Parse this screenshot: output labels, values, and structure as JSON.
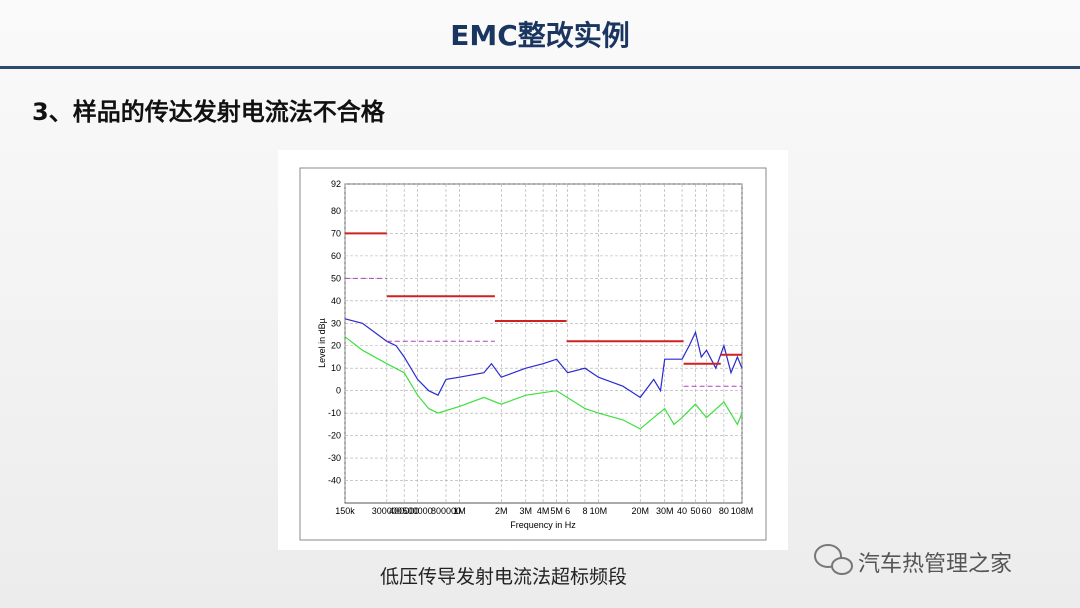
{
  "header": {
    "title": "EMC整改实例"
  },
  "subtitle": "3、样品的传达发射电流法不合格",
  "caption": "低压传导发射电流法超标频段",
  "watermark": "汽车热管理之家",
  "chart_data": {
    "type": "line",
    "log_x": true,
    "grid": true,
    "x_label": "Frequency in Hz",
    "y_label": "Level in dBµ",
    "xlim": [
      150000,
      108000000
    ],
    "ylim": [
      -50,
      92
    ],
    "xticks": [
      {
        "value": 150000,
        "label": "150k"
      },
      300000,
      400000,
      500000,
      800000,
      {
        "value": 1000000,
        "label": "1M"
      },
      {
        "value": 2000000,
        "label": "2M"
      },
      {
        "value": 3000000,
        "label": "3M"
      },
      {
        "value": 4000000,
        "label": "4M"
      },
      {
        "value": 5000000,
        "label": "5M"
      },
      {
        "value": 6000000,
        "label": "6"
      },
      {
        "value": 8000000,
        "label": "8"
      },
      {
        "value": 10000000,
        "label": "10M"
      },
      {
        "value": 20000000,
        "label": "20M"
      },
      {
        "value": 30000000,
        "label": "30M"
      },
      {
        "value": 40000000,
        "label": "40"
      },
      {
        "value": 50000000,
        "label": "50"
      },
      {
        "value": 60000000,
        "label": "60"
      },
      {
        "value": 80000000,
        "label": "80"
      },
      {
        "value": 108000000,
        "label": "108M"
      }
    ],
    "yticks": [
      92,
      80,
      70,
      60,
      50,
      40,
      30,
      20,
      10,
      0,
      -10,
      -20,
      -30,
      -40
    ],
    "series": [
      {
        "color": "#2a2ad0",
        "width": 1.2,
        "x": [
          150000,
          200000,
          300000,
          350000,
          400000,
          500000,
          600000,
          700000,
          800000,
          1000000,
          1500000,
          1700000,
          2000000,
          3000000,
          4000000,
          5000000,
          6000000,
          8000000,
          10000000,
          15000000,
          20000000,
          25000000,
          28000000,
          30000000,
          40000000,
          45000000,
          50000000,
          55000000,
          60000000,
          70000000,
          80000000,
          90000000,
          100000000,
          108000000
        ],
        "values": [
          32,
          30,
          22,
          20,
          15,
          5,
          0,
          -2,
          5,
          6,
          8,
          12,
          6,
          10,
          12,
          14,
          8,
          10,
          6,
          2,
          -3,
          5,
          0,
          14,
          14,
          20,
          26,
          15,
          18,
          10,
          20,
          8,
          15,
          10
        ]
      },
      {
        "color": "#3ce03c",
        "width": 1.2,
        "x": [
          150000,
          200000,
          300000,
          400000,
          500000,
          600000,
          700000,
          1000000,
          1500000,
          2000000,
          3000000,
          5000000,
          8000000,
          10000000,
          15000000,
          20000000,
          25000000,
          30000000,
          35000000,
          40000000,
          50000000,
          60000000,
          80000000,
          100000000,
          108000000
        ],
        "values": [
          24,
          18,
          12,
          8,
          -2,
          -8,
          -10,
          -7,
          -3,
          -6,
          -2,
          0,
          -8,
          -10,
          -13,
          -17,
          -12,
          -8,
          -15,
          -12,
          -6,
          -12,
          -5,
          -15,
          -10
        ]
      },
      {
        "color": "#d02020",
        "width": 2,
        "x": [
          150000,
          300000,
          300000,
          300000,
          1800000,
          1800000,
          1800000,
          5900000,
          5900000,
          5900000,
          41000000,
          41000000,
          41000000,
          76000000,
          76000000,
          76000000,
          108000000
        ],
        "values": [
          70,
          70,
          null,
          42,
          42,
          null,
          31,
          31,
          null,
          22,
          22,
          null,
          12,
          12,
          null,
          16,
          16
        ]
      },
      {
        "color": "#b040c0",
        "width": 1,
        "dash": true,
        "x": [
          150000,
          300000,
          300000,
          300000,
          1800000,
          1800000,
          41000000,
          108000000
        ],
        "values": [
          50,
          50,
          null,
          22,
          22,
          null,
          2,
          2
        ]
      }
    ]
  }
}
